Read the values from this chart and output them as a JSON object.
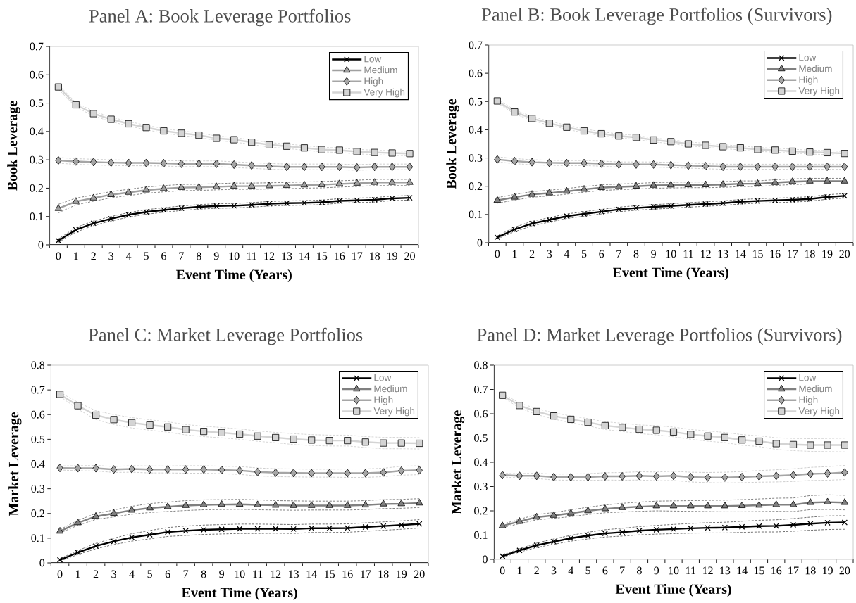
{
  "chart_data": [
    {
      "type": "line",
      "title": "Panel A: Book Leverage Portfolios",
      "xlabel": "Event Time (Years)",
      "ylabel": "Book Leverage",
      "categories": [
        "0",
        "1",
        "2",
        "3",
        "4",
        "5",
        "6",
        "7",
        "8",
        "9",
        "10",
        "11",
        "12",
        "13",
        "14",
        "15",
        "16",
        "17",
        "18",
        "19",
        "20"
      ],
      "ylim": [
        0,
        0.7
      ],
      "yticks": [
        0,
        0.1,
        0.2,
        0.3,
        0.4,
        0.5,
        0.6,
        0.7
      ],
      "legend": "top right",
      "line_style": "solid",
      "series": [
        {
          "color": "#404040",
          "line_style": "dashed",
          "marker": "none",
          "values": [
            0.009,
            0.045,
            0.068,
            0.084,
            0.098,
            0.108,
            0.115,
            0.121,
            0.126,
            0.129,
            0.13,
            0.133,
            0.137,
            0.139,
            0.14,
            0.142,
            0.147,
            0.149,
            0.151,
            0.156,
            0.158
          ]
        },
        {
          "color": "#404040",
          "line_style": "dashed",
          "marker": "none",
          "values": [
            0.021,
            0.061,
            0.084,
            0.1,
            0.114,
            0.124,
            0.131,
            0.137,
            0.142,
            0.145,
            0.146,
            0.149,
            0.153,
            0.155,
            0.156,
            0.158,
            0.163,
            0.165,
            0.167,
            0.172,
            0.174
          ]
        },
        {
          "color": "#595959",
          "line_style": "dashed",
          "marker": "none",
          "values": [
            0.113,
            0.141,
            0.154,
            0.166,
            0.174,
            0.182,
            0.187,
            0.191,
            0.192,
            0.194,
            0.196,
            0.196,
            0.197,
            0.198,
            0.2,
            0.201,
            0.204,
            0.206,
            0.209,
            0.209,
            0.209
          ]
        },
        {
          "color": "#595959",
          "line_style": "dashed",
          "marker": "none",
          "values": [
            0.143,
            0.165,
            0.176,
            0.188,
            0.196,
            0.204,
            0.209,
            0.213,
            0.214,
            0.216,
            0.218,
            0.218,
            0.219,
            0.22,
            0.222,
            0.223,
            0.226,
            0.228,
            0.231,
            0.231,
            0.231
          ]
        },
        {
          "color": "#bfbfbf",
          "line_style": "dashed",
          "marker": "none",
          "values": [
            0.288,
            0.284,
            0.282,
            0.28,
            0.279,
            0.279,
            0.278,
            0.276,
            0.276,
            0.276,
            0.273,
            0.27,
            0.267,
            0.265,
            0.265,
            0.265,
            0.265,
            0.263,
            0.265,
            0.265,
            0.265
          ]
        },
        {
          "color": "#bfbfbf",
          "line_style": "dashed",
          "marker": "none",
          "values": [
            0.308,
            0.304,
            0.302,
            0.3,
            0.299,
            0.299,
            0.298,
            0.296,
            0.296,
            0.296,
            0.293,
            0.29,
            0.287,
            0.285,
            0.285,
            0.285,
            0.285,
            0.283,
            0.285,
            0.285,
            0.285
          ]
        },
        {
          "color": "#c8c8c8",
          "line_style": "dashed",
          "marker": "none",
          "values": [
            0.549,
            0.486,
            0.455,
            0.435,
            0.419,
            0.406,
            0.394,
            0.386,
            0.379,
            0.368,
            0.363,
            0.354,
            0.345,
            0.34,
            0.334,
            0.328,
            0.326,
            0.321,
            0.318,
            0.316,
            0.314
          ]
        },
        {
          "color": "#c8c8c8",
          "line_style": "dashed",
          "marker": "none",
          "values": [
            0.565,
            0.502,
            0.471,
            0.451,
            0.435,
            0.422,
            0.41,
            0.402,
            0.395,
            0.384,
            0.379,
            0.37,
            0.361,
            0.356,
            0.35,
            0.344,
            0.342,
            0.337,
            0.334,
            0.332,
            0.33
          ]
        },
        {
          "name": "Low",
          "color": "#000000",
          "marker": "cross",
          "values": [
            0.015,
            0.053,
            0.076,
            0.092,
            0.106,
            0.116,
            0.123,
            0.129,
            0.134,
            0.137,
            0.138,
            0.141,
            0.145,
            0.147,
            0.148,
            0.15,
            0.155,
            0.157,
            0.159,
            0.164,
            0.166
          ]
        },
        {
          "name": "Medium",
          "color": "#a0a0a0",
          "marker": "triangle",
          "values": [
            0.128,
            0.153,
            0.165,
            0.177,
            0.185,
            0.193,
            0.198,
            0.202,
            0.203,
            0.205,
            0.207,
            0.207,
            0.208,
            0.209,
            0.211,
            0.212,
            0.215,
            0.217,
            0.22,
            0.22,
            0.22
          ]
        },
        {
          "name": "High",
          "color": "#a6a6a6",
          "marker": "diamond",
          "values": [
            0.298,
            0.294,
            0.292,
            0.29,
            0.289,
            0.289,
            0.288,
            0.286,
            0.286,
            0.286,
            0.283,
            0.28,
            0.277,
            0.275,
            0.275,
            0.275,
            0.275,
            0.273,
            0.275,
            0.275,
            0.275
          ]
        },
        {
          "name": "Very High",
          "color": "#d4d4d4",
          "marker": "square",
          "values": [
            0.557,
            0.494,
            0.463,
            0.443,
            0.427,
            0.414,
            0.402,
            0.394,
            0.387,
            0.376,
            0.371,
            0.362,
            0.353,
            0.348,
            0.342,
            0.336,
            0.334,
            0.329,
            0.326,
            0.324,
            0.322
          ]
        }
      ]
    },
    {
      "type": "line",
      "title": "Panel B: Book Leverage Portfolios (Survivors)",
      "xlabel": "Event Time (Years)",
      "ylabel": "Book Leverage",
      "categories": [
        "0",
        "1",
        "2",
        "3",
        "4",
        "5",
        "6",
        "7",
        "8",
        "9",
        "10",
        "11",
        "12",
        "13",
        "14",
        "15",
        "16",
        "17",
        "18",
        "19",
        "20"
      ],
      "ylim": [
        0,
        0.7
      ],
      "yticks": [
        0,
        0.1,
        0.2,
        0.3,
        0.4,
        0.5,
        0.6,
        0.7
      ],
      "legend": "top right",
      "line_style": "solid",
      "series": [
        {
          "color": "#404040",
          "line_style": "dashed",
          "marker": "none",
          "values": [
            0.014,
            0.039,
            0.06,
            0.073,
            0.086,
            0.094,
            0.102,
            0.11,
            0.115,
            0.119,
            0.122,
            0.126,
            0.129,
            0.132,
            0.137,
            0.14,
            0.142,
            0.144,
            0.147,
            0.154,
            0.158
          ]
        },
        {
          "color": "#404040",
          "line_style": "dashed",
          "marker": "none",
          "values": [
            0.024,
            0.055,
            0.076,
            0.089,
            0.102,
            0.11,
            0.118,
            0.126,
            0.131,
            0.135,
            0.138,
            0.142,
            0.145,
            0.148,
            0.153,
            0.156,
            0.158,
            0.16,
            0.163,
            0.17,
            0.174
          ]
        },
        {
          "color": "#595959",
          "line_style": "dashed",
          "marker": "none",
          "values": [
            0.14,
            0.151,
            0.161,
            0.166,
            0.172,
            0.179,
            0.185,
            0.188,
            0.19,
            0.193,
            0.194,
            0.195,
            0.195,
            0.196,
            0.199,
            0.199,
            0.203,
            0.206,
            0.208,
            0.208,
            0.208
          ]
        },
        {
          "color": "#595959",
          "line_style": "dashed",
          "marker": "none",
          "values": [
            0.16,
            0.171,
            0.181,
            0.186,
            0.192,
            0.199,
            0.205,
            0.208,
            0.21,
            0.213,
            0.214,
            0.215,
            0.215,
            0.216,
            0.219,
            0.219,
            0.223,
            0.226,
            0.228,
            0.228,
            0.228
          ]
        },
        {
          "color": "#bfbfbf",
          "line_style": "dashed",
          "marker": "none",
          "values": [
            0.286,
            0.28,
            0.276,
            0.274,
            0.273,
            0.273,
            0.271,
            0.268,
            0.268,
            0.268,
            0.266,
            0.264,
            0.262,
            0.26,
            0.26,
            0.26,
            0.26,
            0.26,
            0.26,
            0.26,
            0.26
          ]
        },
        {
          "color": "#bfbfbf",
          "line_style": "dashed",
          "marker": "none",
          "values": [
            0.304,
            0.298,
            0.294,
            0.292,
            0.291,
            0.291,
            0.289,
            0.286,
            0.286,
            0.286,
            0.284,
            0.282,
            0.28,
            0.278,
            0.278,
            0.278,
            0.278,
            0.278,
            0.278,
            0.278,
            0.278
          ]
        },
        {
          "color": "#c8c8c8",
          "line_style": "dashed",
          "marker": "none",
          "values": [
            0.495,
            0.456,
            0.433,
            0.416,
            0.402,
            0.389,
            0.379,
            0.371,
            0.366,
            0.357,
            0.351,
            0.343,
            0.338,
            0.333,
            0.329,
            0.323,
            0.321,
            0.317,
            0.314,
            0.312,
            0.309
          ]
        },
        {
          "color": "#c8c8c8",
          "line_style": "dashed",
          "marker": "none",
          "values": [
            0.509,
            0.47,
            0.447,
            0.43,
            0.416,
            0.403,
            0.393,
            0.385,
            0.38,
            0.371,
            0.365,
            0.357,
            0.352,
            0.347,
            0.343,
            0.337,
            0.335,
            0.331,
            0.328,
            0.326,
            0.323
          ]
        },
        {
          "name": "Low",
          "color": "#000000",
          "marker": "cross",
          "values": [
            0.019,
            0.047,
            0.068,
            0.081,
            0.094,
            0.102,
            0.11,
            0.118,
            0.123,
            0.127,
            0.13,
            0.134,
            0.137,
            0.14,
            0.145,
            0.148,
            0.15,
            0.152,
            0.155,
            0.162,
            0.166
          ]
        },
        {
          "name": "Medium",
          "color": "#808080",
          "marker": "triangle",
          "values": [
            0.15,
            0.161,
            0.171,
            0.176,
            0.182,
            0.189,
            0.195,
            0.198,
            0.2,
            0.203,
            0.204,
            0.205,
            0.205,
            0.206,
            0.209,
            0.209,
            0.213,
            0.216,
            0.218,
            0.218,
            0.218
          ]
        },
        {
          "name": "High",
          "color": "#a6a6a6",
          "marker": "diamond",
          "values": [
            0.295,
            0.289,
            0.285,
            0.283,
            0.282,
            0.282,
            0.28,
            0.277,
            0.277,
            0.277,
            0.275,
            0.273,
            0.271,
            0.269,
            0.269,
            0.269,
            0.269,
            0.269,
            0.269,
            0.269,
            0.269
          ]
        },
        {
          "name": "Very High",
          "color": "#d4d4d4",
          "marker": "square",
          "values": [
            0.502,
            0.463,
            0.44,
            0.423,
            0.409,
            0.396,
            0.386,
            0.378,
            0.373,
            0.364,
            0.358,
            0.35,
            0.345,
            0.34,
            0.336,
            0.33,
            0.328,
            0.324,
            0.321,
            0.319,
            0.316
          ]
        }
      ]
    },
    {
      "type": "line",
      "title": "Panel C: Market Leverage Portfolios",
      "xlabel": "Event Time (Years)",
      "ylabel": "Market Leverage",
      "categories": [
        "0",
        "1",
        "2",
        "3",
        "4",
        "5",
        "6",
        "7",
        "8",
        "9",
        "10",
        "11",
        "12",
        "13",
        "14",
        "15",
        "16",
        "17",
        "18",
        "19",
        "20"
      ],
      "ylim": [
        0,
        0.8
      ],
      "yticks": [
        0,
        0.1,
        0.2,
        0.3,
        0.4,
        0.5,
        0.6,
        0.7,
        0.8
      ],
      "legend": "top right",
      "line_style": "solid",
      "series": [
        {
          "color": "#404040",
          "line_style": "dashed",
          "marker": "none",
          "values": [
            0.007,
            0.034,
            0.057,
            0.074,
            0.088,
            0.097,
            0.107,
            0.111,
            0.115,
            0.117,
            0.119,
            0.119,
            0.12,
            0.119,
            0.123,
            0.123,
            0.124,
            0.128,
            0.132,
            0.136,
            0.141
          ]
        },
        {
          "color": "#404040",
          "line_style": "dashed",
          "marker": "none",
          "values": [
            0.017,
            0.05,
            0.079,
            0.1,
            0.118,
            0.131,
            0.143,
            0.149,
            0.153,
            0.155,
            0.157,
            0.157,
            0.156,
            0.155,
            0.157,
            0.157,
            0.158,
            0.162,
            0.166,
            0.17,
            0.175
          ]
        },
        {
          "color": "#595959",
          "line_style": "dashed",
          "marker": "none",
          "values": [
            0.121,
            0.152,
            0.176,
            0.186,
            0.197,
            0.204,
            0.208,
            0.212,
            0.215,
            0.216,
            0.217,
            0.215,
            0.214,
            0.213,
            0.214,
            0.214,
            0.214,
            0.216,
            0.22,
            0.221,
            0.224
          ]
        },
        {
          "color": "#595959",
          "line_style": "dashed",
          "marker": "none",
          "values": [
            0.135,
            0.172,
            0.2,
            0.214,
            0.229,
            0.24,
            0.246,
            0.252,
            0.255,
            0.256,
            0.257,
            0.255,
            0.252,
            0.251,
            0.25,
            0.25,
            0.25,
            0.252,
            0.256,
            0.257,
            0.26
          ]
        },
        {
          "color": "#bfbfbf",
          "line_style": "dashed",
          "marker": "none",
          "values": [
            0.376,
            0.373,
            0.372,
            0.366,
            0.367,
            0.364,
            0.364,
            0.363,
            0.363,
            0.361,
            0.358,
            0.352,
            0.349,
            0.348,
            0.347,
            0.347,
            0.346,
            0.346,
            0.349,
            0.355,
            0.357
          ]
        },
        {
          "color": "#bfbfbf",
          "line_style": "dashed",
          "marker": "none",
          "values": [
            0.392,
            0.393,
            0.394,
            0.39,
            0.393,
            0.392,
            0.392,
            0.393,
            0.393,
            0.391,
            0.39,
            0.384,
            0.381,
            0.38,
            0.379,
            0.379,
            0.38,
            0.38,
            0.383,
            0.391,
            0.393
          ]
        },
        {
          "color": "#c8c8c8",
          "line_style": "dashed",
          "marker": "none",
          "values": [
            0.674,
            0.622,
            0.58,
            0.56,
            0.546,
            0.537,
            0.529,
            0.518,
            0.511,
            0.506,
            0.5,
            0.492,
            0.486,
            0.479,
            0.475,
            0.473,
            0.473,
            0.467,
            0.462,
            0.462,
            0.461
          ]
        },
        {
          "color": "#c8c8c8",
          "line_style": "dashed",
          "marker": "none",
          "values": [
            0.69,
            0.65,
            0.616,
            0.6,
            0.588,
            0.579,
            0.571,
            0.56,
            0.553,
            0.548,
            0.542,
            0.534,
            0.528,
            0.523,
            0.519,
            0.517,
            0.517,
            0.511,
            0.508,
            0.508,
            0.507
          ]
        },
        {
          "name": "Low",
          "color": "#000000",
          "marker": "cross",
          "values": [
            0.012,
            0.042,
            0.068,
            0.087,
            0.103,
            0.114,
            0.125,
            0.13,
            0.134,
            0.136,
            0.138,
            0.138,
            0.138,
            0.137,
            0.14,
            0.14,
            0.141,
            0.145,
            0.149,
            0.153,
            0.158
          ]
        },
        {
          "name": "Medium",
          "color": "#808080",
          "marker": "triangle",
          "values": [
            0.128,
            0.162,
            0.188,
            0.2,
            0.213,
            0.222,
            0.227,
            0.232,
            0.235,
            0.236,
            0.237,
            0.235,
            0.233,
            0.232,
            0.232,
            0.232,
            0.232,
            0.234,
            0.238,
            0.239,
            0.242
          ]
        },
        {
          "name": "High",
          "color": "#a6a6a6",
          "marker": "diamond",
          "values": [
            0.384,
            0.383,
            0.383,
            0.378,
            0.38,
            0.378,
            0.378,
            0.378,
            0.378,
            0.376,
            0.374,
            0.368,
            0.365,
            0.364,
            0.363,
            0.363,
            0.363,
            0.363,
            0.366,
            0.373,
            0.375
          ]
        },
        {
          "name": "Very High",
          "color": "#d4d4d4",
          "marker": "square",
          "values": [
            0.682,
            0.636,
            0.598,
            0.58,
            0.567,
            0.558,
            0.55,
            0.539,
            0.532,
            0.527,
            0.521,
            0.513,
            0.507,
            0.501,
            0.497,
            0.495,
            0.495,
            0.489,
            0.485,
            0.485,
            0.484
          ]
        }
      ]
    },
    {
      "type": "line",
      "title": "Panel D: Market Leverage Portfolios (Survivors)",
      "xlabel": "Event Time (Years)",
      "ylabel": "Market Leverage",
      "categories": [
        "0",
        "1",
        "2",
        "3",
        "4",
        "5",
        "6",
        "7",
        "8",
        "9",
        "10",
        "11",
        "12",
        "13",
        "14",
        "15",
        "16",
        "17",
        "18",
        "19",
        "20"
      ],
      "ylim": [
        0,
        0.8
      ],
      "yticks": [
        0,
        0.1,
        0.2,
        0.3,
        0.4,
        0.5,
        0.6,
        0.7,
        0.8
      ],
      "legend": "top right",
      "line_style": "solid",
      "series": [
        {
          "color": "#404040",
          "line_style": "dashed",
          "marker": "none",
          "values": [
            0.009,
            0.03,
            0.049,
            0.062,
            0.075,
            0.084,
            0.092,
            0.096,
            0.101,
            0.104,
            0.106,
            0.108,
            0.109,
            0.109,
            0.111,
            0.113,
            0.113,
            0.116,
            0.12,
            0.123,
            0.124
          ]
        },
        {
          "color": "#404040",
          "line_style": "dashed",
          "marker": "none",
          "values": [
            0.017,
            0.044,
            0.067,
            0.084,
            0.099,
            0.112,
            0.122,
            0.128,
            0.135,
            0.14,
            0.144,
            0.148,
            0.151,
            0.153,
            0.157,
            0.161,
            0.163,
            0.168,
            0.174,
            0.179,
            0.18
          ]
        },
        {
          "color": "#595959",
          "line_style": "dashed",
          "marker": "none",
          "values": [
            0.131,
            0.147,
            0.163,
            0.169,
            0.176,
            0.185,
            0.192,
            0.195,
            0.198,
            0.2,
            0.199,
            0.198,
            0.197,
            0.196,
            0.196,
            0.197,
            0.198,
            0.197,
            0.205,
            0.206,
            0.204
          ]
        },
        {
          "color": "#595959",
          "line_style": "dashed",
          "marker": "none",
          "values": [
            0.145,
            0.165,
            0.185,
            0.193,
            0.204,
            0.215,
            0.224,
            0.231,
            0.236,
            0.24,
            0.241,
            0.242,
            0.243,
            0.244,
            0.246,
            0.249,
            0.252,
            0.253,
            0.263,
            0.266,
            0.264
          ]
        },
        {
          "color": "#bfbfbf",
          "line_style": "dashed",
          "marker": "none",
          "values": [
            0.34,
            0.335,
            0.333,
            0.327,
            0.326,
            0.325,
            0.327,
            0.326,
            0.327,
            0.324,
            0.325,
            0.319,
            0.316,
            0.315,
            0.316,
            0.318,
            0.319,
            0.321,
            0.325,
            0.326,
            0.329
          ]
        },
        {
          "color": "#bfbfbf",
          "line_style": "dashed",
          "marker": "none",
          "values": [
            0.354,
            0.353,
            0.355,
            0.351,
            0.352,
            0.353,
            0.357,
            0.358,
            0.361,
            0.36,
            0.363,
            0.359,
            0.358,
            0.359,
            0.362,
            0.366,
            0.369,
            0.373,
            0.379,
            0.382,
            0.387
          ]
        },
        {
          "color": "#c8c8c8",
          "line_style": "dashed",
          "marker": "none",
          "values": [
            0.668,
            0.624,
            0.597,
            0.578,
            0.563,
            0.55,
            0.535,
            0.527,
            0.518,
            0.513,
            0.505,
            0.495,
            0.487,
            0.481,
            0.47,
            0.465,
            0.453,
            0.448,
            0.445,
            0.444,
            0.443
          ]
        },
        {
          "color": "#c8c8c8",
          "line_style": "dashed",
          "marker": "none",
          "values": [
            0.684,
            0.644,
            0.621,
            0.604,
            0.591,
            0.58,
            0.567,
            0.561,
            0.554,
            0.551,
            0.545,
            0.535,
            0.529,
            0.523,
            0.514,
            0.509,
            0.501,
            0.498,
            0.497,
            0.498,
            0.499
          ]
        },
        {
          "name": "Low",
          "color": "#000000",
          "marker": "cross",
          "values": [
            0.013,
            0.037,
            0.058,
            0.073,
            0.087,
            0.098,
            0.107,
            0.112,
            0.118,
            0.122,
            0.125,
            0.128,
            0.13,
            0.131,
            0.134,
            0.137,
            0.138,
            0.142,
            0.147,
            0.151,
            0.152
          ]
        },
        {
          "name": "Medium",
          "color": "#808080",
          "marker": "triangle",
          "values": [
            0.138,
            0.156,
            0.174,
            0.181,
            0.19,
            0.2,
            0.208,
            0.213,
            0.217,
            0.22,
            0.22,
            0.22,
            0.22,
            0.22,
            0.221,
            0.223,
            0.225,
            0.225,
            0.234,
            0.236,
            0.234
          ]
        },
        {
          "name": "High",
          "color": "#a6a6a6",
          "marker": "diamond",
          "values": [
            0.347,
            0.344,
            0.344,
            0.339,
            0.339,
            0.339,
            0.342,
            0.342,
            0.344,
            0.342,
            0.344,
            0.339,
            0.337,
            0.337,
            0.339,
            0.342,
            0.344,
            0.347,
            0.352,
            0.354,
            0.358
          ]
        },
        {
          "name": "Very High",
          "color": "#d4d4d4",
          "marker": "square",
          "values": [
            0.676,
            0.634,
            0.609,
            0.591,
            0.577,
            0.565,
            0.551,
            0.544,
            0.536,
            0.532,
            0.525,
            0.515,
            0.508,
            0.502,
            0.492,
            0.487,
            0.477,
            0.473,
            0.471,
            0.471,
            0.471
          ]
        }
      ]
    }
  ]
}
